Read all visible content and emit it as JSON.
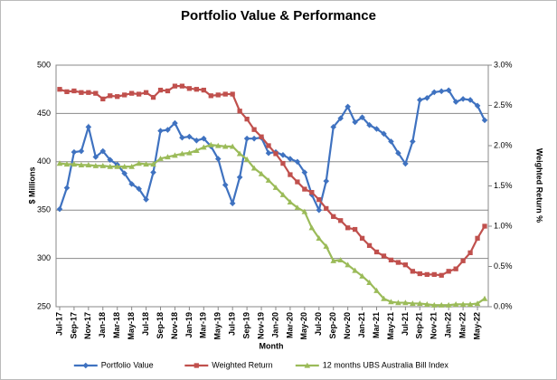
{
  "chart_data": {
    "type": "line",
    "title": "Portfolio Value & Performance",
    "xlabel": "Month",
    "ylabel": "$ Millions",
    "y2label": "Weighted Return %",
    "categories": [
      "Jul-17",
      null,
      "Sep-17",
      null,
      "Nov-17",
      null,
      "Jan-18",
      null,
      "Mar-18",
      null,
      "May-18",
      null,
      "Jul-18",
      null,
      "Sep-18",
      null,
      "Nov-18",
      null,
      "Jan-19",
      null,
      "Mar-19",
      null,
      "May-19",
      null,
      "Jul-19",
      null,
      "Sep-19",
      null,
      "Nov-19",
      null,
      "Jan-20",
      null,
      "Mar-20",
      null,
      "May-20",
      null,
      "Jul-20",
      null,
      "Sep-20",
      null,
      "Nov-20",
      null,
      "Jan-21",
      null,
      "Mar-21",
      null,
      "May-21",
      null,
      "Jul-21",
      null,
      "Sep-21",
      null,
      "Nov-21",
      null,
      "Jan-22",
      null,
      "Mar-22",
      null,
      "May-22",
      null
    ],
    "ylim": [
      250,
      500
    ],
    "yticks": [
      250,
      300,
      350,
      400,
      450,
      500
    ],
    "y2lim": [
      0,
      3
    ],
    "y2ticks": [
      {
        "value": 0,
        "label": "0.0%"
      },
      {
        "value": 0.5,
        "label": "0.5%"
      },
      {
        "value": 1,
        "label": "1.0%"
      },
      {
        "value": 1.5,
        "label": "1.5%"
      },
      {
        "value": 2,
        "label": "2.0%"
      },
      {
        "value": 2.5,
        "label": "2.5%"
      },
      {
        "value": 3,
        "label": "3.0%"
      }
    ],
    "grid": true,
    "legend": "bottom",
    "series": [
      {
        "name": "Portfolio Value",
        "color": "#3f72c0",
        "marker": "diamond",
        "values": [
          351,
          373,
          410,
          411,
          436,
          405,
          411,
          402,
          397,
          388,
          377,
          372,
          361,
          389,
          432,
          433,
          440,
          425,
          426,
          422,
          424,
          416,
          403,
          376,
          357,
          384,
          424,
          424,
          425,
          409,
          410,
          407,
          403,
          400,
          389,
          366,
          350,
          380,
          436,
          445,
          457,
          441,
          446,
          438,
          434,
          429,
          421,
          409,
          398,
          421,
          464,
          466,
          472,
          473,
          474,
          462,
          465,
          464,
          458,
          443
        ]
      },
      {
        "name": "Weighted Return",
        "color": "#c0504d",
        "marker": "square",
        "axis": "y2",
        "values": [
          2.7,
          2.67,
          2.68,
          2.66,
          2.66,
          2.65,
          2.58,
          2.62,
          2.61,
          2.63,
          2.65,
          2.64,
          2.66,
          2.6,
          2.69,
          2.68,
          2.74,
          2.74,
          2.71,
          2.7,
          2.69,
          2.62,
          2.63,
          2.64,
          2.64,
          2.43,
          2.33,
          2.2,
          2.11,
          2.0,
          1.9,
          1.78,
          1.64,
          1.55,
          1.46,
          1.42,
          1.33,
          1.22,
          1.12,
          1.07,
          0.98,
          0.96,
          0.85,
          0.76,
          0.68,
          0.63,
          0.58,
          0.55,
          0.52,
          0.44,
          0.41,
          0.4,
          0.4,
          0.39,
          0.44,
          0.47,
          0.57,
          0.67,
          0.85,
          1.0
        ]
      },
      {
        "name": "12 months UBS Australia Bill Index",
        "color": "#9bbb59",
        "marker": "triangle",
        "axis": "y2",
        "values": [
          1.78,
          1.77,
          1.77,
          1.76,
          1.76,
          1.75,
          1.75,
          1.74,
          1.74,
          1.74,
          1.74,
          1.78,
          1.77,
          1.77,
          1.84,
          1.86,
          1.88,
          1.9,
          1.91,
          1.94,
          1.98,
          2.01,
          2.0,
          1.99,
          1.99,
          1.9,
          1.83,
          1.72,
          1.65,
          1.57,
          1.48,
          1.39,
          1.3,
          1.23,
          1.18,
          0.98,
          0.85,
          0.75,
          0.57,
          0.58,
          0.52,
          0.45,
          0.38,
          0.3,
          0.2,
          0.1,
          0.06,
          0.05,
          0.05,
          0.04,
          0.04,
          0.03,
          0.02,
          0.02,
          0.02,
          0.03,
          0.03,
          0.03,
          0.04,
          0.1
        ]
      }
    ]
  }
}
